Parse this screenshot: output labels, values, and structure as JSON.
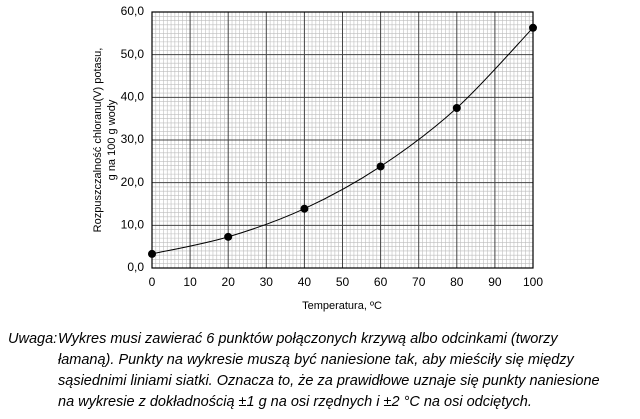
{
  "chart_data": {
    "type": "line",
    "x": [
      0,
      20,
      40,
      60,
      80,
      100
    ],
    "series": [
      {
        "values": [
          3.3,
          7.3,
          13.9,
          23.8,
          37.5,
          56.3
        ],
        "color": "#000000"
      }
    ],
    "xlim": [
      0,
      100
    ],
    "xticks": [
      0,
      10,
      20,
      30,
      40,
      50,
      60,
      70,
      80,
      90,
      100
    ],
    "ylim": [
      0,
      60
    ],
    "yticks": [
      {
        "value": 0,
        "label": "0,0"
      },
      {
        "value": 10,
        "label": "10,0"
      },
      {
        "value": 20,
        "label": "20,0"
      },
      {
        "value": 30,
        "label": "30,0"
      },
      {
        "value": 40,
        "label": "40,0"
      },
      {
        "value": 50,
        "label": "50,0"
      },
      {
        "value": 60,
        "label": "60,0"
      }
    ],
    "xlabel": "Temperatura, ºC",
    "ylabel": [
      "Rozpuszczalność chloranu(V) potasu,",
      "g na 100 g wody"
    ],
    "grid": true,
    "smooth": true
  },
  "note": {
    "label": "Uwaga:",
    "lines": [
      "Wykres musi zawierać 6 punktów połączonych krzywą albo odcinkami (tworzy",
      "łamaną). Punkty na wykresie muszą być naniesione tak, aby mieściły się między",
      "sąsiednimi liniami siatki. Oznacza to, że za prawidłowe uznaje się punkty naniesione",
      "na wykresie z dokładnością ±1 g na osi rzędnych i ±2 °C na osi odciętych."
    ]
  }
}
